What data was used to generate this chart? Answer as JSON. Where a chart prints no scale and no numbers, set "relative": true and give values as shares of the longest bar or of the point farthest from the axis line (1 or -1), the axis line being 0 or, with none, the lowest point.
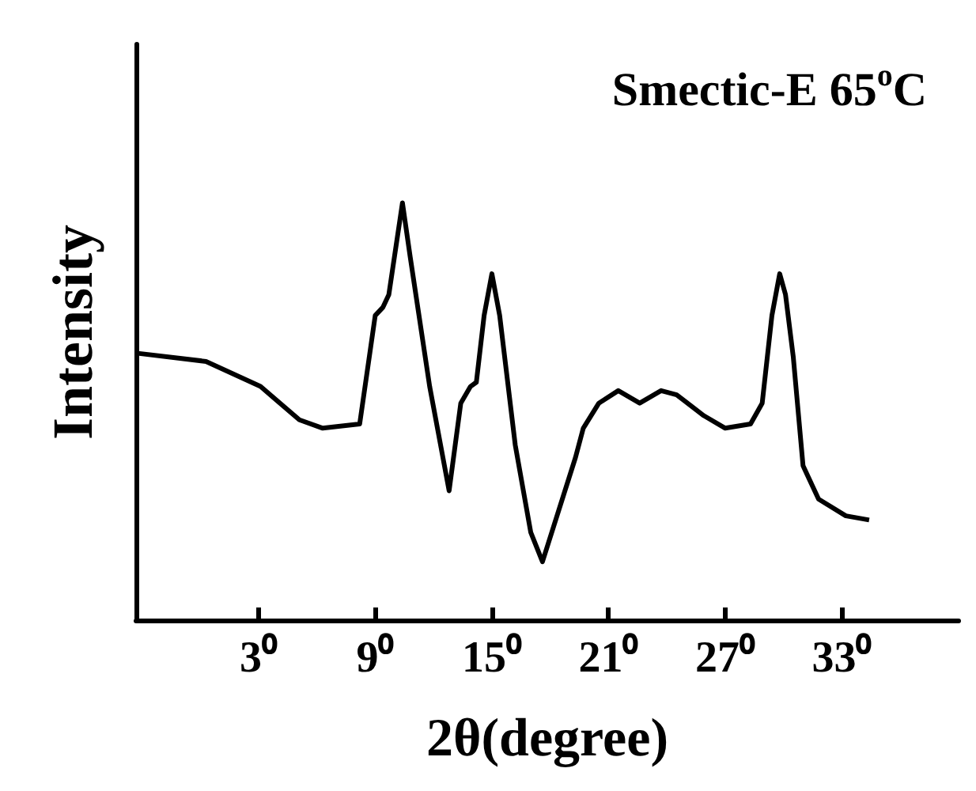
{
  "chart_data": {
    "type": "line",
    "relative": true,
    "xlabel": "2θ(degree)",
    "ylabel": "Intensity",
    "annotations": [
      "Smectic-E 65$^{o}$C"
    ],
    "color": "#000000",
    "marker": "none",
    "grid": false,
    "xlim": [
      -3.3,
      39
    ],
    "xticks": [
      {
        "value": 3,
        "label": "3⁰"
      },
      {
        "value": 9,
        "label": "9⁰"
      },
      {
        "value": 15,
        "label": "15⁰"
      },
      {
        "value": 21,
        "label": "21⁰"
      },
      {
        "value": 27,
        "label": "27⁰"
      },
      {
        "value": 33,
        "label": "33⁰"
      }
    ],
    "x": [
      -3.3,
      0.3,
      3.1,
      5.1,
      6.3,
      8.2,
      9.0,
      9.4,
      9.7,
      10.4,
      10.8,
      11.8,
      12.8,
      13.4,
      13.9,
      14.2,
      14.6,
      15.0,
      15.4,
      16.2,
      17.0,
      17.6,
      19.3,
      19.7,
      20.5,
      21.5,
      22.6,
      23.7,
      24.5,
      25.9,
      27.0,
      28.3,
      28.9,
      29.4,
      29.8,
      30.1,
      30.5,
      31.0,
      31.8,
      33.2,
      34.4
    ],
    "values": [
      0.64,
      0.62,
      0.56,
      0.48,
      0.46,
      0.47,
      0.73,
      0.75,
      0.78,
      1,
      0.87,
      0.56,
      0.31,
      0.52,
      0.56,
      0.57,
      0.73,
      0.83,
      0.73,
      0.42,
      0.21,
      0.14,
      0.39,
      0.46,
      0.52,
      0.55,
      0.52,
      0.55,
      0.54,
      0.49,
      0.46,
      0.47,
      0.52,
      0.73,
      0.83,
      0.78,
      0.63,
      0.37,
      0.29,
      0.25,
      0.24
    ]
  }
}
